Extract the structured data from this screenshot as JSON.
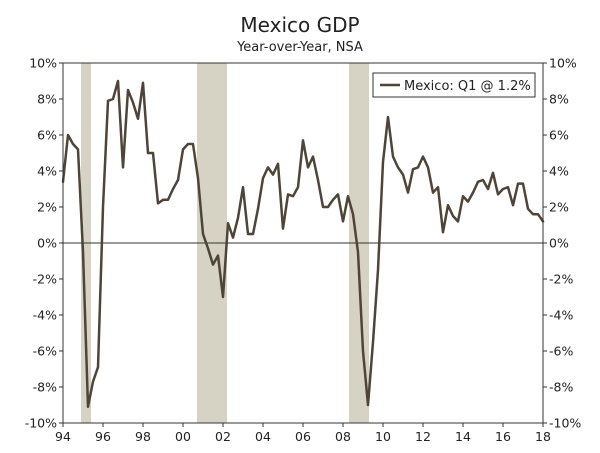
{
  "chart_data": {
    "type": "line",
    "title": "Mexico GDP",
    "subtitle": "Year-over-Year, NSA",
    "xlabel": "",
    "ylabel": "",
    "ylim": [
      -10,
      10
    ],
    "xlim": [
      1994,
      2018
    ],
    "y_ticks_left": [
      "10%",
      "8%",
      "6%",
      "4%",
      "2%",
      "0%",
      "-2%",
      "-4%",
      "-6%",
      "-8%",
      "-10%"
    ],
    "y_ticks_right": [
      "10%",
      "8%",
      "6%",
      "4%",
      "2%",
      "0%",
      "-2%",
      "-4%",
      "-6%",
      "-8%",
      "-10%"
    ],
    "y_tick_values": [
      10,
      8,
      6,
      4,
      2,
      0,
      -2,
      -4,
      -6,
      -8,
      -10
    ],
    "x_ticks": [
      "94",
      "96",
      "98",
      "00",
      "02",
      "04",
      "06",
      "08",
      "10",
      "12",
      "14",
      "16",
      "18"
    ],
    "x_tick_values": [
      1994,
      1996,
      1998,
      2000,
      2002,
      2004,
      2006,
      2008,
      2010,
      2012,
      2014,
      2016,
      2018
    ],
    "legend": {
      "position": "top-right",
      "label": "Mexico: Q1 @ 1.2%"
    },
    "grid": false,
    "colors": {
      "line": "#4e4438",
      "recession": "#d6d3c4"
    },
    "recession_bands": [
      {
        "start": 1994.9,
        "end": 1995.4
      },
      {
        "start": 2000.7,
        "end": 2002.2
      },
      {
        "start": 2008.3,
        "end": 2009.3
      }
    ],
    "series": [
      {
        "name": "Mexico",
        "points": [
          [
            1994.0,
            3.4
          ],
          [
            1994.25,
            6.0
          ],
          [
            1994.5,
            5.5
          ],
          [
            1994.75,
            5.2
          ],
          [
            1995.0,
            -0.5
          ],
          [
            1995.25,
            -9.1
          ],
          [
            1995.5,
            -7.7
          ],
          [
            1995.75,
            -6.9
          ],
          [
            1996.0,
            2.0
          ],
          [
            1996.25,
            7.9
          ],
          [
            1996.5,
            8.0
          ],
          [
            1996.75,
            9.0
          ],
          [
            1997.0,
            4.2
          ],
          [
            1997.25,
            8.5
          ],
          [
            1997.5,
            7.8
          ],
          [
            1997.75,
            6.9
          ],
          [
            1998.0,
            8.9
          ],
          [
            1998.25,
            5.0
          ],
          [
            1998.5,
            5.0
          ],
          [
            1998.75,
            2.2
          ],
          [
            1999.0,
            2.4
          ],
          [
            1999.25,
            2.4
          ],
          [
            1999.5,
            3.0
          ],
          [
            1999.75,
            3.5
          ],
          [
            2000.0,
            5.2
          ],
          [
            2000.25,
            5.5
          ],
          [
            2000.5,
            5.5
          ],
          [
            2000.75,
            3.6
          ],
          [
            2001.0,
            0.5
          ],
          [
            2001.25,
            -0.3
          ],
          [
            2001.5,
            -1.2
          ],
          [
            2001.75,
            -0.7
          ],
          [
            2002.0,
            -3.0
          ],
          [
            2002.25,
            1.1
          ],
          [
            2002.5,
            0.3
          ],
          [
            2002.75,
            1.4
          ],
          [
            2003.0,
            3.1
          ],
          [
            2003.25,
            0.5
          ],
          [
            2003.5,
            0.5
          ],
          [
            2003.75,
            1.9
          ],
          [
            2004.0,
            3.6
          ],
          [
            2004.25,
            4.2
          ],
          [
            2004.5,
            3.8
          ],
          [
            2004.75,
            4.4
          ],
          [
            2005.0,
            0.8
          ],
          [
            2005.25,
            2.7
          ],
          [
            2005.5,
            2.6
          ],
          [
            2005.75,
            3.1
          ],
          [
            2006.0,
            5.7
          ],
          [
            2006.25,
            4.2
          ],
          [
            2006.5,
            4.8
          ],
          [
            2006.75,
            3.5
          ],
          [
            2007.0,
            2.0
          ],
          [
            2007.25,
            2.0
          ],
          [
            2007.5,
            2.4
          ],
          [
            2007.75,
            2.7
          ],
          [
            2008.0,
            1.2
          ],
          [
            2008.25,
            2.6
          ],
          [
            2008.5,
            1.6
          ],
          [
            2008.75,
            -0.5
          ],
          [
            2009.0,
            -6.0
          ],
          [
            2009.25,
            -9.0
          ],
          [
            2009.5,
            -5.5
          ],
          [
            2009.75,
            -1.5
          ],
          [
            2010.0,
            4.5
          ],
          [
            2010.25,
            7.0
          ],
          [
            2010.5,
            4.8
          ],
          [
            2010.75,
            4.2
          ],
          [
            2011.0,
            3.8
          ],
          [
            2011.25,
            2.8
          ],
          [
            2011.5,
            4.1
          ],
          [
            2011.75,
            4.2
          ],
          [
            2012.0,
            4.8
          ],
          [
            2012.25,
            4.2
          ],
          [
            2012.5,
            2.8
          ],
          [
            2012.75,
            3.1
          ],
          [
            2013.0,
            0.6
          ],
          [
            2013.25,
            2.1
          ],
          [
            2013.5,
            1.5
          ],
          [
            2013.75,
            1.2
          ],
          [
            2014.0,
            2.6
          ],
          [
            2014.25,
            2.3
          ],
          [
            2014.5,
            2.8
          ],
          [
            2014.75,
            3.4
          ],
          [
            2015.0,
            3.5
          ],
          [
            2015.25,
            3.0
          ],
          [
            2015.5,
            3.9
          ],
          [
            2015.75,
            2.7
          ],
          [
            2016.0,
            3.0
          ],
          [
            2016.25,
            3.1
          ],
          [
            2016.5,
            2.1
          ],
          [
            2016.75,
            3.3
          ],
          [
            2017.0,
            3.3
          ],
          [
            2017.25,
            1.9
          ],
          [
            2017.5,
            1.6
          ],
          [
            2017.75,
            1.6
          ],
          [
            2018.0,
            1.2
          ]
        ]
      }
    ]
  }
}
